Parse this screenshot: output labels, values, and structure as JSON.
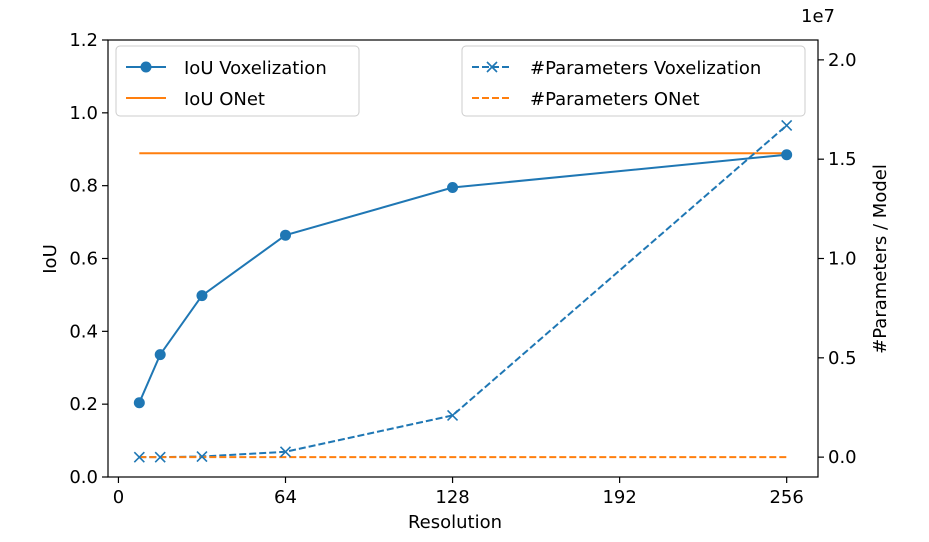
{
  "chart_data": {
    "type": "line",
    "xlabel": "Resolution",
    "ylabel_left": "IoU",
    "ylabel_right": "#Parameters / Model",
    "right_axis_multiplier": "1e7",
    "xlim": [
      -4,
      268
    ],
    "ylim_left": [
      0,
      1.2
    ],
    "ylim_right": [
      -0.1,
      2.1
    ],
    "x_ticks": [
      0,
      64,
      128,
      192,
      256
    ],
    "x_tick_labels": [
      "0",
      "64",
      "128",
      "192",
      "256"
    ],
    "y_left_ticks": [
      0,
      0.2,
      0.4,
      0.6,
      0.8,
      1.0,
      1.2
    ],
    "y_left_tick_labels": [
      "0.0",
      "0.2",
      "0.4",
      "0.6",
      "0.8",
      "1.0",
      "1.2"
    ],
    "y_right_ticks": [
      0,
      0.5,
      1.0,
      1.5,
      2.0
    ],
    "y_right_tick_labels": [
      "0.0",
      "0.5",
      "1.0",
      "1.5",
      "2.0"
    ],
    "series": [
      {
        "name": "IoU Voxelization",
        "axis": "left",
        "style": "solid-marker-circle",
        "color": "#1f77b4",
        "x": [
          8,
          16,
          32,
          64,
          128,
          256
        ],
        "values": [
          0.204,
          0.336,
          0.498,
          0.664,
          0.795,
          0.885
        ]
      },
      {
        "name": "IoU ONet",
        "axis": "left",
        "style": "solid",
        "color": "#ff7f0e",
        "x": [
          8,
          256
        ],
        "values": [
          0.889,
          0.889
        ]
      },
      {
        "name": "#Parameters Voxelization",
        "axis": "right",
        "style": "dashed-marker-x",
        "color": "#1f77b4",
        "x": [
          8,
          16,
          32,
          64,
          128,
          256
        ],
        "values": [
          0.0,
          0.0,
          0.003,
          0.027,
          0.21,
          1.67
        ]
      },
      {
        "name": "#Parameters ONet",
        "axis": "right",
        "style": "dashed",
        "color": "#ff7f0e",
        "x": [
          8,
          256
        ],
        "values": [
          0.0,
          0.0
        ]
      }
    ],
    "legend_left": "top-left",
    "legend_right": "top-right",
    "grid": false
  }
}
